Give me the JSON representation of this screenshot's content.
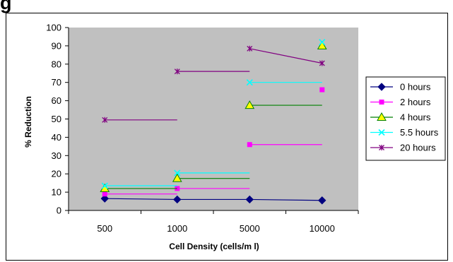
{
  "heading": "g",
  "chart_data": {
    "type": "line",
    "title": "",
    "xlabel": "Cell Density (cells/m l)",
    "ylabel": "% Reduction",
    "categories": [
      "500",
      "1000",
      "5000",
      "10000"
    ],
    "ylim": [
      0,
      100
    ],
    "yticks": [
      0,
      10,
      20,
      30,
      40,
      50,
      60,
      70,
      80,
      90,
      100
    ],
    "grid": false,
    "plot_background": "#c0c0c0",
    "legend_position": "right",
    "series": [
      {
        "name": "0 hours",
        "color": "#000080",
        "marker": "diamond",
        "line": "connected",
        "values": [
          6.5,
          6,
          6,
          5.5
        ]
      },
      {
        "name": "2 hours",
        "color": "#ff00ff",
        "marker": "square",
        "line": "steps",
        "values": [
          9,
          12,
          36,
          66
        ]
      },
      {
        "name": "4 hours",
        "color": "#008000",
        "marker": "triangle",
        "marker_fill": "#ffff00",
        "line": "steps",
        "values": [
          12,
          17.5,
          57.5,
          90
        ]
      },
      {
        "name": "5.5 hours",
        "color": "#00ffff",
        "marker": "x",
        "line": "steps",
        "values": [
          13.5,
          20.5,
          70,
          92
        ]
      },
      {
        "name": "20 hours",
        "color": "#800080",
        "marker": "star",
        "line": "mixed",
        "values": [
          49.5,
          76,
          88.5,
          80.5
        ]
      }
    ]
  }
}
